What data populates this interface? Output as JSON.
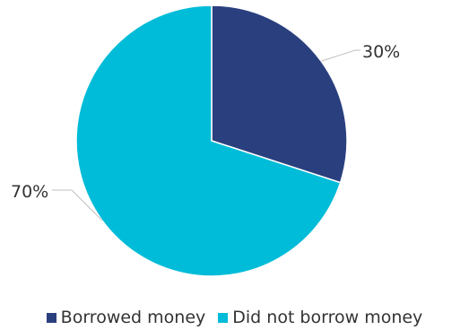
{
  "chart_data": {
    "type": "pie",
    "slices": [
      {
        "name": "Borrowed money",
        "value": 30,
        "label": "30%",
        "color": "#2a3f7e"
      },
      {
        "name": "Did not borrow money",
        "value": 70,
        "label": "70%",
        "color": "#00bcd8"
      }
    ],
    "legend_position": "bottom"
  },
  "legend": {
    "items": [
      {
        "label": "Borrowed money",
        "color": "#2a3f7e"
      },
      {
        "label": "Did not borrow money",
        "color": "#00bcd8"
      }
    ]
  }
}
